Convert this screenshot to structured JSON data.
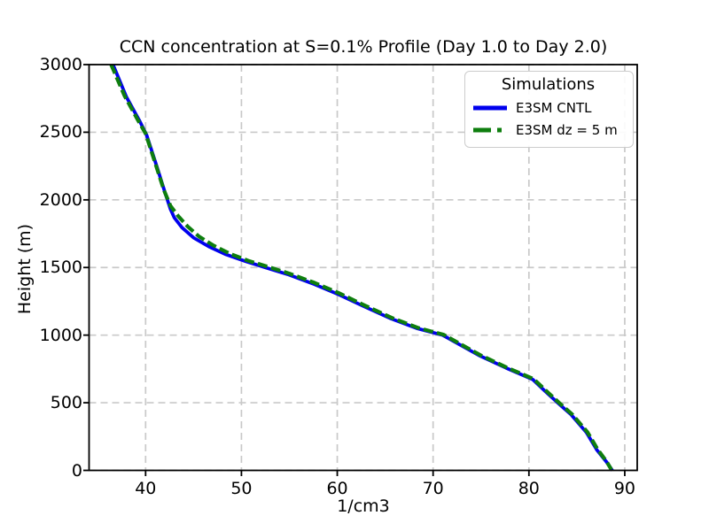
{
  "chart_data": {
    "type": "line",
    "title": "CCN concentration at S=0.1% Profile (Day 1.0 to Day 2.0)",
    "xlabel": "1/cm3",
    "ylabel": "Height (m)",
    "xlim": [
      34.1,
      91.3
    ],
    "ylim": [
      0,
      3000
    ],
    "xticks": [
      40,
      50,
      60,
      70,
      80,
      90
    ],
    "yticks": [
      0,
      500,
      1000,
      1500,
      2000,
      2500,
      3000
    ],
    "grid": true,
    "grid_color": "#c9c9c9",
    "axis_color": "#000000",
    "legend": {
      "title": "Simulations",
      "position": "upper right"
    },
    "series": [
      {
        "name": "E3SM CNTL",
        "color": "#0000ee",
        "style": "solid",
        "width": 3.8,
        "points": [
          [
            36.6,
            3000
          ],
          [
            38.0,
            2760
          ],
          [
            39.4,
            2580
          ],
          [
            40.1,
            2480
          ],
          [
            41.2,
            2240
          ],
          [
            42.0,
            2060
          ],
          [
            42.6,
            1930
          ],
          [
            43.0,
            1868
          ],
          [
            43.8,
            1795
          ],
          [
            45.0,
            1720
          ],
          [
            46.6,
            1655
          ],
          [
            48.4,
            1596
          ],
          [
            50.4,
            1546
          ],
          [
            52.5,
            1500
          ],
          [
            54.8,
            1450
          ],
          [
            57.4,
            1382
          ],
          [
            60.0,
            1305
          ],
          [
            62.7,
            1215
          ],
          [
            65.6,
            1122
          ],
          [
            68.3,
            1050
          ],
          [
            71.0,
            1000
          ],
          [
            74.8,
            850
          ],
          [
            77.6,
            758
          ],
          [
            80.4,
            672
          ],
          [
            81.7,
            585
          ],
          [
            83.0,
            500
          ],
          [
            84.4,
            412
          ],
          [
            86.0,
            280
          ],
          [
            87.1,
            150
          ],
          [
            88.1,
            62
          ],
          [
            88.7,
            0
          ]
        ]
      },
      {
        "name": "E3SM dz = 5 m",
        "color": "#0e7e0e",
        "style": "dashed",
        "width": 4.2,
        "points": [
          [
            36.4,
            3000
          ],
          [
            37.8,
            2770
          ],
          [
            39.2,
            2590
          ],
          [
            40.0,
            2490
          ],
          [
            41.1,
            2250
          ],
          [
            41.9,
            2075
          ],
          [
            42.6,
            1955
          ],
          [
            43.4,
            1880
          ],
          [
            44.4,
            1802
          ],
          [
            45.6,
            1728
          ],
          [
            47.1,
            1662
          ],
          [
            48.8,
            1602
          ],
          [
            50.7,
            1550
          ],
          [
            52.8,
            1505
          ],
          [
            55.0,
            1455
          ],
          [
            57.6,
            1388
          ],
          [
            60.2,
            1310
          ],
          [
            62.9,
            1218
          ],
          [
            65.8,
            1125
          ],
          [
            68.5,
            1052
          ],
          [
            71.1,
            1003
          ],
          [
            74.9,
            853
          ],
          [
            77.7,
            760
          ],
          [
            80.5,
            675
          ],
          [
            81.8,
            588
          ],
          [
            83.1,
            503
          ],
          [
            84.5,
            415
          ],
          [
            86.1,
            283
          ],
          [
            87.2,
            152
          ],
          [
            88.1,
            66
          ],
          [
            88.6,
            6
          ]
        ]
      }
    ]
  }
}
